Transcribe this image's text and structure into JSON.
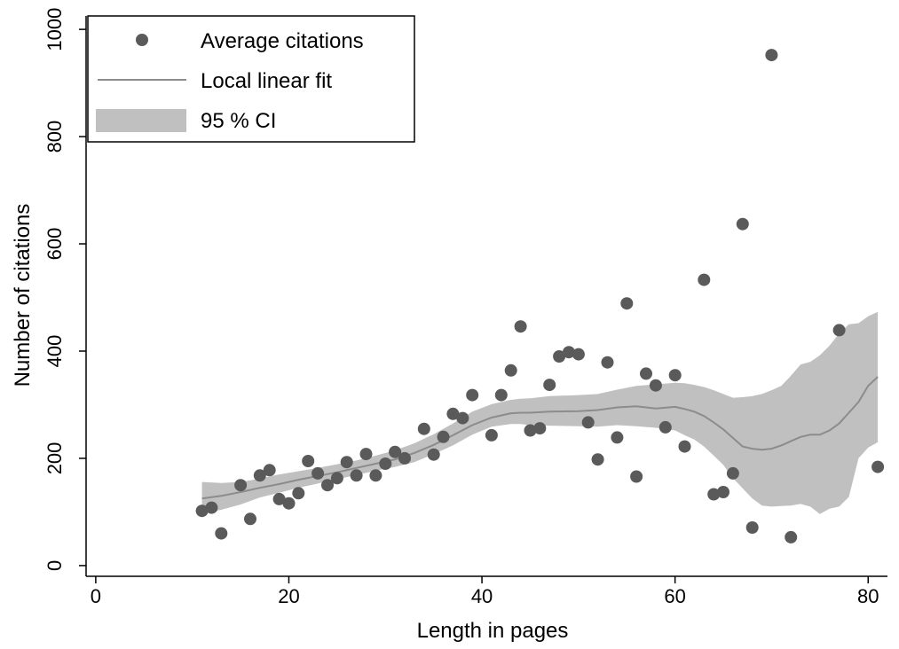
{
  "chart_data": {
    "type": "scatter",
    "title": "",
    "xlabel": "Length in pages",
    "ylabel": "Number of citations",
    "xlim": [
      -1,
      82
    ],
    "ylim": [
      -20,
      1025
    ],
    "xticks": [
      0,
      20,
      40,
      60,
      80
    ],
    "yticks": [
      0,
      200,
      400,
      600,
      800,
      1000
    ],
    "grid": false,
    "legend_position": "top-left",
    "colors": {
      "points": "#5a5a5a",
      "fit_line": "#8c8c8c",
      "ci_band": "#c0c0c0",
      "axis": "#000000"
    },
    "legend": [
      {
        "label": "Average citations",
        "kind": "marker"
      },
      {
        "label": "Local linear fit",
        "kind": "line"
      },
      {
        "label": "95 % CI",
        "kind": "area"
      }
    ],
    "series": [
      {
        "name": "Average citations",
        "kind": "scatter",
        "points": [
          [
            11,
            102
          ],
          [
            12,
            108
          ],
          [
            13,
            60
          ],
          [
            15,
            150
          ],
          [
            16,
            87
          ],
          [
            17,
            168
          ],
          [
            18,
            178
          ],
          [
            19,
            124
          ],
          [
            20,
            116
          ],
          [
            21,
            135
          ],
          [
            22,
            195
          ],
          [
            23,
            172
          ],
          [
            24,
            150
          ],
          [
            25,
            163
          ],
          [
            26,
            193
          ],
          [
            27,
            168
          ],
          [
            28,
            208
          ],
          [
            29,
            168
          ],
          [
            30,
            190
          ],
          [
            31,
            212
          ],
          [
            32,
            200
          ],
          [
            34,
            255
          ],
          [
            35,
            207
          ],
          [
            36,
            240
          ],
          [
            37,
            283
          ],
          [
            38,
            275
          ],
          [
            39,
            318
          ],
          [
            41,
            243
          ],
          [
            42,
            318
          ],
          [
            43,
            364
          ],
          [
            44,
            446
          ],
          [
            45,
            252
          ],
          [
            46,
            256
          ],
          [
            47,
            337
          ],
          [
            48,
            390
          ],
          [
            49,
            398
          ],
          [
            50,
            394
          ],
          [
            51,
            267
          ],
          [
            52,
            198
          ],
          [
            53,
            379
          ],
          [
            54,
            239
          ],
          [
            55,
            489
          ],
          [
            56,
            166
          ],
          [
            57,
            358
          ],
          [
            58,
            336
          ],
          [
            59,
            258
          ],
          [
            60,
            355
          ],
          [
            61,
            222
          ],
          [
            63,
            533
          ],
          [
            64,
            133
          ],
          [
            65,
            137
          ],
          [
            66,
            172
          ],
          [
            67,
            637
          ],
          [
            68,
            71
          ],
          [
            70,
            952
          ],
          [
            72,
            53
          ],
          [
            77,
            439
          ],
          [
            81,
            184
          ]
        ]
      },
      {
        "name": "Local linear fit",
        "kind": "line",
        "x": [
          11,
          13,
          15,
          17,
          19,
          21,
          23,
          25,
          27,
          29,
          31,
          33,
          35,
          37,
          39,
          41,
          43,
          44,
          45,
          47,
          50,
          52,
          54,
          56,
          58,
          60,
          61,
          62,
          63,
          64,
          65,
          66,
          67,
          68,
          69,
          70,
          71,
          72,
          73,
          74,
          75,
          76,
          77,
          78,
          79,
          80,
          81
        ],
        "y": [
          125,
          130,
          137,
          145,
          152,
          160,
          167,
          174,
          182,
          190,
          198,
          210,
          225,
          243,
          262,
          276,
          284,
          285,
          285,
          287,
          288,
          290,
          295,
          297,
          293,
          296,
          292,
          287,
          279,
          267,
          254,
          238,
          222,
          218,
          216,
          218,
          224,
          232,
          240,
          244,
          244,
          252,
          265,
          285,
          305,
          335,
          352
        ]
      },
      {
        "name": "95 % CI",
        "kind": "band",
        "x": [
          11,
          13,
          15,
          17,
          19,
          21,
          23,
          25,
          27,
          29,
          31,
          33,
          35,
          37,
          39,
          41,
          43,
          44,
          45,
          47,
          50,
          52,
          54,
          56,
          58,
          60,
          61,
          62,
          63,
          64,
          65,
          66,
          67,
          68,
          69,
          70,
          71,
          72,
          73,
          74,
          75,
          76,
          77,
          78,
          79,
          80,
          81
        ],
        "upper": [
          156,
          154,
          156,
          162,
          170,
          176,
          182,
          189,
          196,
          205,
          215,
          228,
          245,
          265,
          287,
          301,
          309,
          311,
          312,
          316,
          318,
          320,
          328,
          335,
          338,
          341,
          340,
          337,
          333,
          327,
          320,
          313,
          314,
          316,
          320,
          327,
          335,
          354,
          375,
          380,
          392,
          410,
          433,
          450,
          452,
          465,
          473
        ],
        "lower": [
          98,
          104,
          114,
          127,
          136,
          145,
          153,
          161,
          169,
          177,
          184,
          193,
          208,
          224,
          244,
          259,
          264,
          264,
          262,
          261,
          260,
          259,
          262,
          260,
          257,
          252,
          243,
          235,
          222,
          205,
          188,
          163,
          144,
          125,
          112,
          110,
          111,
          112,
          115,
          110,
          96,
          106,
          110,
          128,
          200,
          220,
          230
        ]
      }
    ]
  }
}
